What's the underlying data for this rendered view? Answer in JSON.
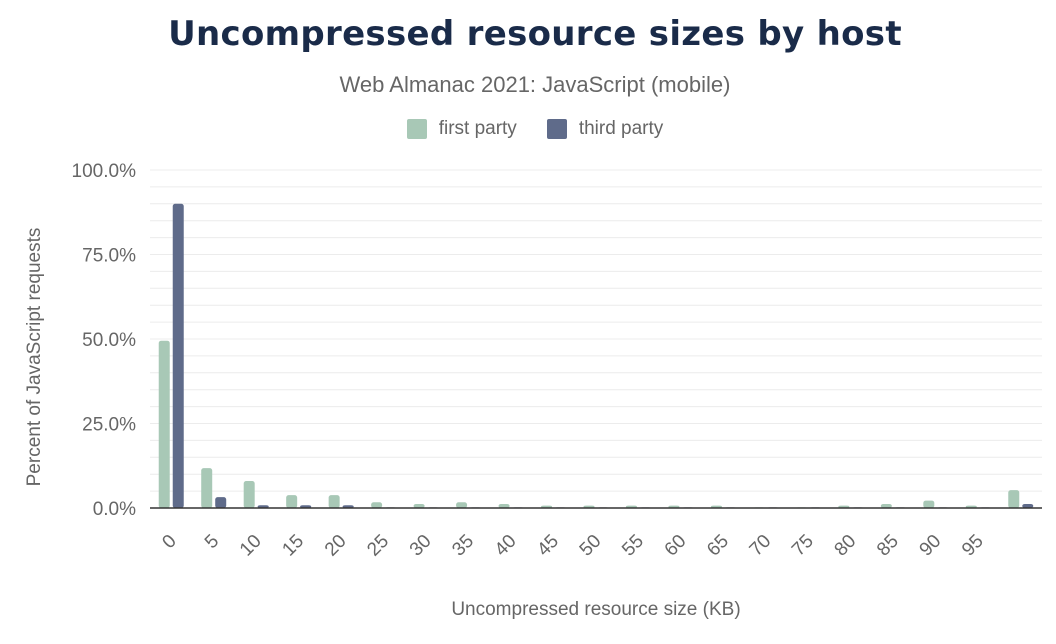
{
  "chart_data": {
    "type": "bar",
    "title": "Uncompressed resource sizes by host",
    "subtitle": "Web Almanac 2021: JavaScript (mobile)",
    "xlabel": "Uncompressed resource size (KB)",
    "ylabel": "Percent of JavaScript requests",
    "ylim": [
      0,
      100
    ],
    "yticks": [
      "0.0%",
      "25.0%",
      "50.0%",
      "75.0%",
      "100.0%"
    ],
    "ytick_values": [
      0,
      25,
      50,
      75,
      100
    ],
    "categories": [
      "0",
      "5",
      "10",
      "15",
      "20",
      "25",
      "30",
      "35",
      "40",
      "45",
      "50",
      "55",
      "60",
      "65",
      "70",
      "75",
      "80",
      "85",
      "90",
      "95",
      ""
    ],
    "series": [
      {
        "name": "first party",
        "color": "#a8c8b6",
        "values": [
          49.5,
          11.8,
          8.0,
          3.8,
          3.8,
          1.7,
          1.2,
          1.7,
          1.2,
          0.7,
          0.7,
          0.7,
          0.7,
          0.7,
          0.2,
          0.2,
          0.7,
          1.2,
          2.2,
          0.7,
          5.3
        ]
      },
      {
        "name": "third party",
        "color": "#5f6b8a",
        "values": [
          90.0,
          3.2,
          0.8,
          0.8,
          0.8,
          0.2,
          0.2,
          0.2,
          0.2,
          0.2,
          0.2,
          0.2,
          0.2,
          0.2,
          0.2,
          0.2,
          0.2,
          0.2,
          0.2,
          0.2,
          1.2
        ]
      }
    ],
    "grid": true,
    "legend": "top-center"
  }
}
